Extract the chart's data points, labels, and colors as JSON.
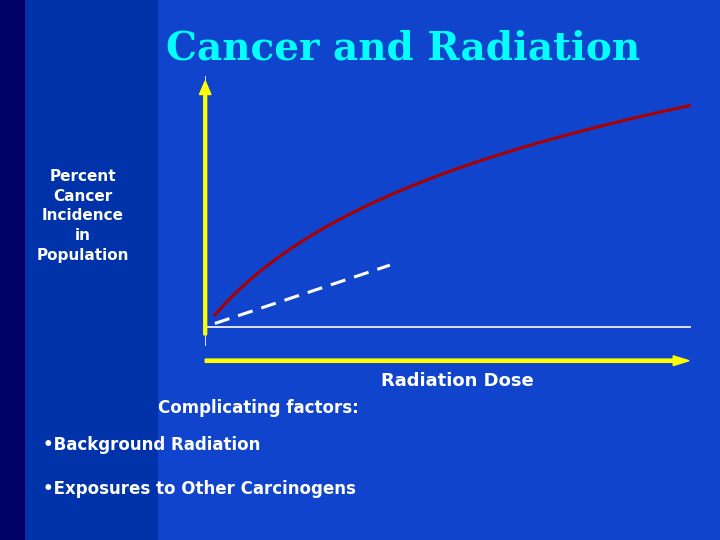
{
  "title": "Cancer and Radiation",
  "title_color": "#00FFFF",
  "title_fontsize": 28,
  "ylabel_text": "Percent\nCancer\nIncidence\nin\nPopulation",
  "xlabel_text": "Radiation Dose",
  "complicating_text": "Complicating factors:",
  "bullet1": "•Background Radiation",
  "bullet2": "•Exposures to Other Carcinogens",
  "text_color": "#FFFFFF",
  "yellow_color": "#FFFF00",
  "red_curve_color": "#AA0000",
  "dashed_color": "#FFFFFF",
  "axis_color": "#FFFFFF",
  "bg_main": "#1144CC",
  "bg_left": "#0033AA",
  "bg_edge": "#000066"
}
